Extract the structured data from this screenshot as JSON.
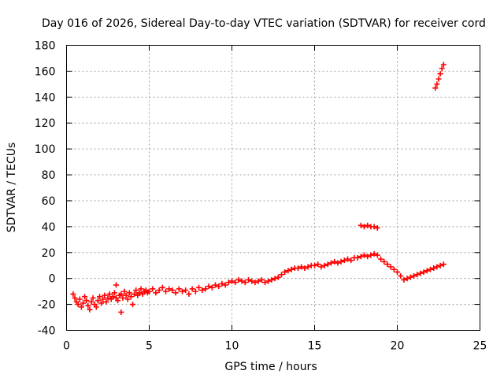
{
  "chart_data": {
    "type": "scatter",
    "title": "Day 016 of 2026, Sidereal Day-to-day VTEC variation (SDTVAR) for receiver cord",
    "xlabel": "GPS time / hours",
    "ylabel": "SDTVAR / TECUs",
    "xlim": [
      0,
      25
    ],
    "ylim": [
      -40,
      180
    ],
    "xticks": [
      0,
      5,
      10,
      15,
      20,
      25
    ],
    "yticks": [
      -40,
      -20,
      0,
      20,
      40,
      60,
      80,
      100,
      120,
      140,
      160,
      180
    ],
    "grid": true,
    "marker": "+",
    "series_color": "#ff0000",
    "series": [
      {
        "name": "SDTVAR",
        "points": [
          [
            0.4,
            -12
          ],
          [
            0.5,
            -15
          ],
          [
            0.6,
            -18
          ],
          [
            0.7,
            -20
          ],
          [
            0.8,
            -16
          ],
          [
            0.9,
            -22
          ],
          [
            1.0,
            -19
          ],
          [
            1.1,
            -14
          ],
          [
            1.2,
            -17
          ],
          [
            1.3,
            -21
          ],
          [
            1.4,
            -24
          ],
          [
            1.5,
            -18
          ],
          [
            1.6,
            -15
          ],
          [
            1.7,
            -20
          ],
          [
            1.8,
            -22
          ],
          [
            1.9,
            -17
          ],
          [
            2.0,
            -14
          ],
          [
            2.1,
            -19
          ],
          [
            2.2,
            -16
          ],
          [
            2.3,
            -13
          ],
          [
            2.4,
            -18
          ],
          [
            2.5,
            -15
          ],
          [
            2.6,
            -12
          ],
          [
            2.7,
            -16
          ],
          [
            2.8,
            -14
          ],
          [
            2.9,
            -11
          ],
          [
            3.0,
            -5
          ],
          [
            3.0,
            -15
          ],
          [
            3.1,
            -17
          ],
          [
            3.2,
            -13
          ],
          [
            3.3,
            -26
          ],
          [
            3.3,
            -12
          ],
          [
            3.4,
            -15
          ],
          [
            3.5,
            -10
          ],
          [
            3.6,
            -13
          ],
          [
            3.7,
            -16
          ],
          [
            3.8,
            -11
          ],
          [
            3.9,
            -14
          ],
          [
            4.0,
            -20
          ],
          [
            4.1,
            -12
          ],
          [
            4.2,
            -9
          ],
          [
            4.3,
            -13
          ],
          [
            4.4,
            -11
          ],
          [
            4.5,
            -8
          ],
          [
            4.6,
            -12
          ],
          [
            4.7,
            -10
          ],
          [
            4.8,
            -9
          ],
          [
            4.9,
            -11
          ],
          [
            5.0,
            -10
          ],
          [
            5.2,
            -8
          ],
          [
            5.4,
            -11
          ],
          [
            5.6,
            -9
          ],
          [
            5.8,
            -7
          ],
          [
            6.0,
            -10
          ],
          [
            6.2,
            -8
          ],
          [
            6.4,
            -9
          ],
          [
            6.6,
            -11
          ],
          [
            6.8,
            -8
          ],
          [
            7.0,
            -10
          ],
          [
            7.2,
            -9
          ],
          [
            7.4,
            -12
          ],
          [
            7.6,
            -8
          ],
          [
            7.8,
            -10
          ],
          [
            8.0,
            -7
          ],
          [
            8.2,
            -9
          ],
          [
            8.4,
            -8
          ],
          [
            8.6,
            -6
          ],
          [
            8.8,
            -7
          ],
          [
            9.0,
            -5
          ],
          [
            9.2,
            -6
          ],
          [
            9.4,
            -4
          ],
          [
            9.6,
            -5
          ],
          [
            9.8,
            -3
          ],
          [
            10.0,
            -2
          ],
          [
            10.2,
            -3
          ],
          [
            10.4,
            -1
          ],
          [
            10.6,
            -2
          ],
          [
            10.8,
            -3
          ],
          [
            11.0,
            -1
          ],
          [
            11.2,
            -2
          ],
          [
            11.4,
            -3
          ],
          [
            11.6,
            -2
          ],
          [
            11.8,
            -1
          ],
          [
            12.0,
            -3
          ],
          [
            12.2,
            -2
          ],
          [
            12.4,
            -1
          ],
          [
            12.6,
            0
          ],
          [
            12.8,
            1
          ],
          [
            13.0,
            3
          ],
          [
            13.2,
            5
          ],
          [
            13.4,
            6
          ],
          [
            13.6,
            7
          ],
          [
            13.8,
            8
          ],
          [
            14.0,
            8
          ],
          [
            14.2,
            9
          ],
          [
            14.4,
            8
          ],
          [
            14.6,
            9
          ],
          [
            14.8,
            10
          ],
          [
            15.0,
            10
          ],
          [
            15.2,
            11
          ],
          [
            15.4,
            9
          ],
          [
            15.6,
            10
          ],
          [
            15.8,
            11
          ],
          [
            16.0,
            12
          ],
          [
            16.2,
            13
          ],
          [
            16.4,
            12
          ],
          [
            16.6,
            13
          ],
          [
            16.8,
            14
          ],
          [
            17.0,
            15
          ],
          [
            17.2,
            14
          ],
          [
            17.4,
            16
          ],
          [
            17.6,
            16
          ],
          [
            17.8,
            17
          ],
          [
            18.0,
            18
          ],
          [
            18.2,
            17
          ],
          [
            18.4,
            18
          ],
          [
            18.6,
            19
          ],
          [
            18.8,
            18
          ],
          [
            19.0,
            15
          ],
          [
            19.2,
            13
          ],
          [
            19.4,
            11
          ],
          [
            19.6,
            9
          ],
          [
            19.8,
            7
          ],
          [
            20.0,
            5
          ],
          [
            20.2,
            2
          ],
          [
            20.4,
            -1
          ],
          [
            20.6,
            0
          ],
          [
            20.8,
            1
          ],
          [
            21.0,
            2
          ],
          [
            21.2,
            3
          ],
          [
            21.4,
            4
          ],
          [
            21.6,
            5
          ],
          [
            21.8,
            6
          ],
          [
            22.0,
            7
          ],
          [
            22.2,
            8
          ],
          [
            22.4,
            9
          ],
          [
            22.6,
            10
          ],
          [
            22.8,
            11
          ],
          [
            17.8,
            41
          ],
          [
            18.0,
            40
          ],
          [
            18.2,
            41
          ],
          [
            18.4,
            40
          ],
          [
            18.6,
            40
          ],
          [
            18.8,
            39
          ],
          [
            22.3,
            147
          ],
          [
            22.4,
            150
          ],
          [
            22.5,
            154
          ],
          [
            22.6,
            158
          ],
          [
            22.7,
            162
          ],
          [
            22.8,
            165
          ]
        ]
      }
    ]
  }
}
